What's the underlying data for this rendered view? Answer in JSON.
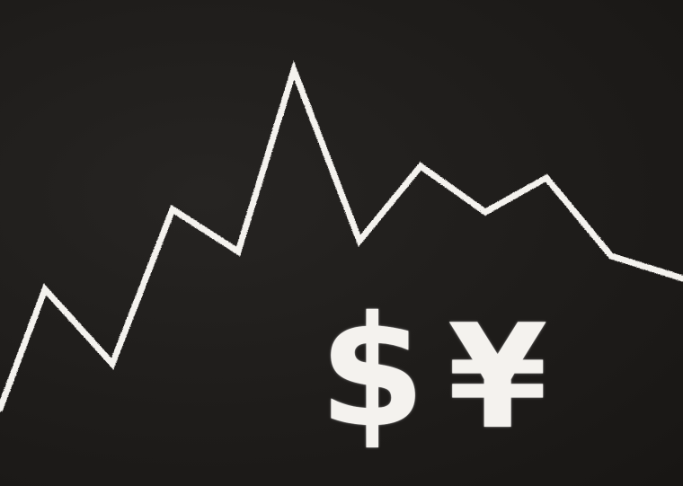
{
  "symbols": {
    "dollar": "$",
    "yen": "¥"
  },
  "colors": {
    "board": "#1e1c1a",
    "chalk": "#f4f2ee"
  },
  "line_icon": "zigzag-trend-line"
}
